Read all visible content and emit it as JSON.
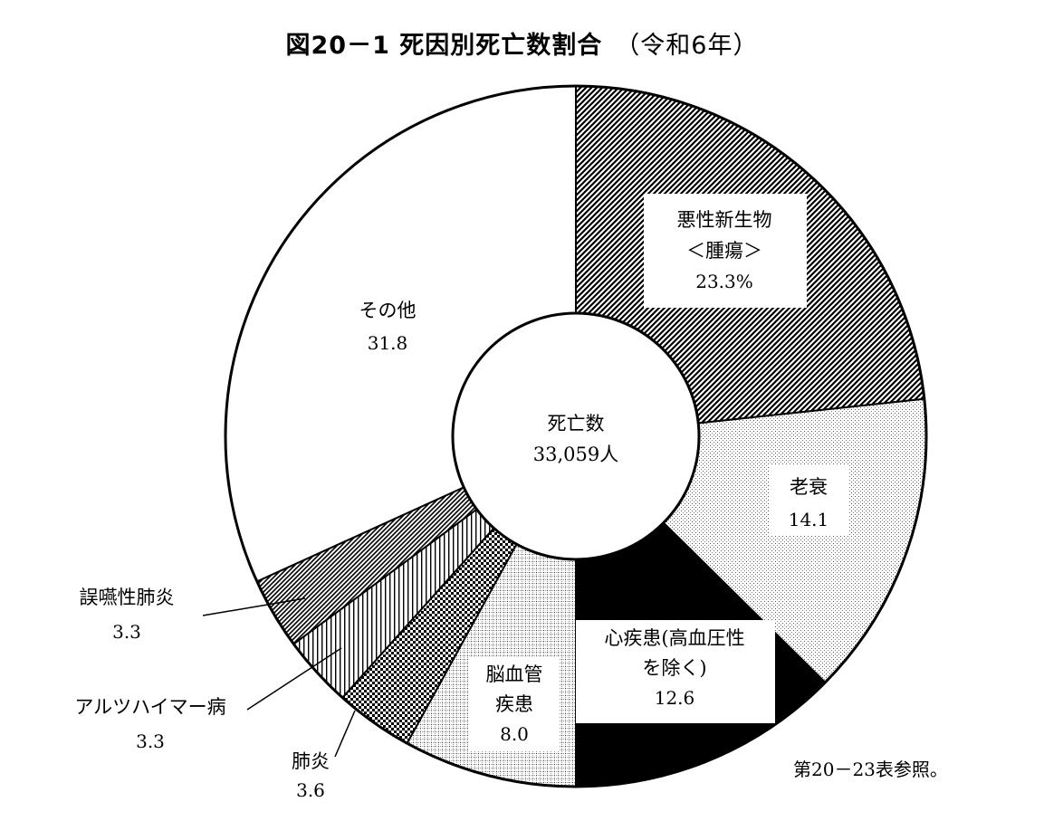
{
  "title": {
    "main": "図20－1 死因別死亡数割合",
    "sub": "（令和6年）"
  },
  "center": {
    "line1": "死亡数",
    "line2": "33,059人"
  },
  "note": "第20－23表参照。",
  "chart_data": {
    "type": "pie",
    "donut": true,
    "start": "12 o'clock, clockwise",
    "slices": [
      {
        "id": "cancer",
        "label_lines": [
          "悪性新生物",
          "＜腫瘍＞"
        ],
        "value_text": "23.3%",
        "value": 23.3,
        "fill": "diagonal-hatch",
        "label_box": true
      },
      {
        "id": "senility",
        "label_lines": [
          "老衰"
        ],
        "value_text": "14.1",
        "value": 14.1,
        "fill": "light-dots",
        "label_box": true
      },
      {
        "id": "heart",
        "label_lines": [
          "心疾患(高血圧性",
          "を除く)"
        ],
        "value_text": "12.6",
        "value": 12.6,
        "fill": "solid-black",
        "label_box": true
      },
      {
        "id": "cerebro",
        "label_lines": [
          "脳血管",
          "疾患"
        ],
        "value_text": "8.0",
        "value": 8.0,
        "fill": "fine-grid",
        "label_box": true
      },
      {
        "id": "pneumonia",
        "label_lines": [
          "肺炎"
        ],
        "value_text": "3.6",
        "value": 3.6,
        "fill": "checker",
        "label_box": false
      },
      {
        "id": "alzheimer",
        "label_lines": [
          "アルツハイマー病"
        ],
        "value_text": "3.3",
        "value": 3.3,
        "fill": "vertical-lines",
        "label_box": false
      },
      {
        "id": "aspiration",
        "label_lines": [
          "誤嚥性肺炎"
        ],
        "value_text": "3.3",
        "value": 3.3,
        "fill": "diagonal-lines-dense",
        "label_box": false
      },
      {
        "id": "other",
        "label_lines": [
          "その他"
        ],
        "value_text": "31.8",
        "value": 31.8,
        "fill": "white",
        "label_box": false
      }
    ]
  }
}
